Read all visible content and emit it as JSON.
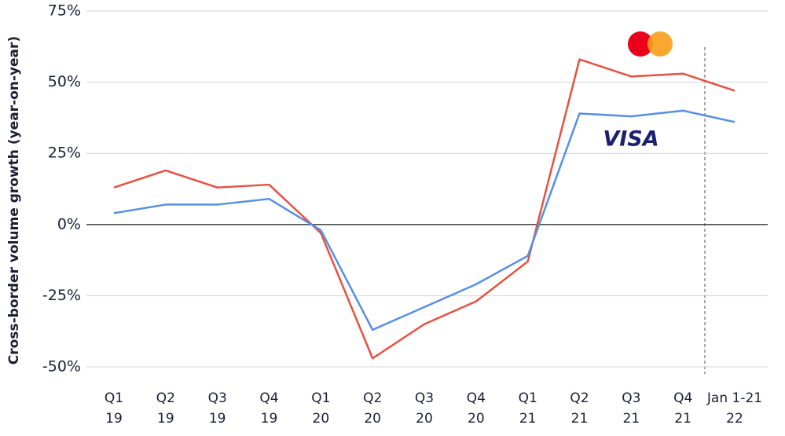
{
  "chart_data": {
    "type": "line",
    "y_label": "Cross-border volume growth (year-on-year)",
    "categories": [
      [
        "Q1",
        "19"
      ],
      [
        "Q2",
        "19"
      ],
      [
        "Q3",
        "19"
      ],
      [
        "Q4",
        "19"
      ],
      [
        "Q1",
        "20"
      ],
      [
        "Q2",
        "20"
      ],
      [
        "Q3",
        "20"
      ],
      [
        "Q4",
        "20"
      ],
      [
        "Q1",
        "21"
      ],
      [
        "Q2",
        "21"
      ],
      [
        "Q3",
        "21"
      ],
      [
        "Q4",
        "21"
      ],
      [
        "Jan 1-21",
        "22"
      ]
    ],
    "series": [
      {
        "color": "#e8503f",
        "values": [
          13,
          19,
          13,
          14,
          -3,
          -47,
          -35,
          -27,
          -13,
          58,
          52,
          53,
          47
        ]
      },
      {
        "name": "VISA",
        "color": "#5590e6",
        "values": [
          4,
          7,
          7,
          9,
          -2,
          -37,
          -29,
          -21,
          -11,
          39,
          38,
          40,
          36
        ]
      }
    ],
    "ylim": [
      -50,
      75
    ],
    "yticks": [
      {
        "value": -50,
        "label": "-50%"
      },
      {
        "value": -25,
        "label": "-25%"
      },
      {
        "value": 0,
        "label": "0%"
      },
      {
        "value": 25,
        "label": "25%"
      },
      {
        "value": 50,
        "label": "50%"
      },
      {
        "value": 75,
        "label": "75%"
      }
    ],
    "grid": true
  }
}
